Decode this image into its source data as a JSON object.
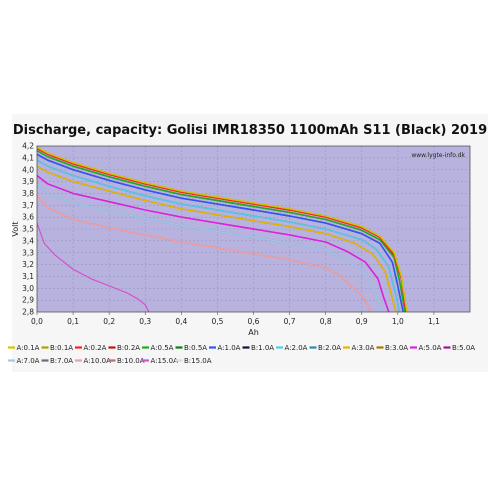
{
  "chart_data": {
    "type": "line",
    "title": "Discharge, capacity: Golisi IMR18350 1100mAh S11 (Black) 2019",
    "watermark": "www.lygte-info.dk",
    "xlabel": "Ah",
    "ylabel": "Volt",
    "xlim": [
      0,
      1.2
    ],
    "ylim": [
      2.8,
      4.2
    ],
    "x_ticks": [
      "0,0",
      "0,1",
      "0,2",
      "0,3",
      "0,4",
      "0,5",
      "0,6",
      "0,7",
      "0,8",
      "0,9",
      "1,0",
      "1,1"
    ],
    "y_ticks": [
      "2,8",
      "2,9",
      "3,0",
      "3,1",
      "3,2",
      "3,3",
      "3,4",
      "3,5",
      "3,6",
      "3,7",
      "3,8",
      "3,9",
      "4,0",
      "4,1",
      "4,2"
    ],
    "grid": true,
    "legend_position": "bottom",
    "background_color": "#b7b3de",
    "series": [
      {
        "name": "A:0.1A",
        "color": "#d2c400",
        "x": [
          0,
          0.03,
          0.1,
          0.2,
          0.3,
          0.4,
          0.5,
          0.6,
          0.7,
          0.8,
          0.9,
          0.95,
          0.99,
          1.01,
          1.025
        ],
        "y": [
          4.19,
          4.14,
          4.06,
          3.97,
          3.89,
          3.82,
          3.77,
          3.72,
          3.67,
          3.61,
          3.52,
          3.44,
          3.3,
          3.1,
          2.8
        ]
      },
      {
        "name": "B:0.1A",
        "color": "#b79a00",
        "x": [
          0,
          0.03,
          0.1,
          0.2,
          0.3,
          0.4,
          0.5,
          0.6,
          0.7,
          0.8,
          0.9,
          0.95,
          0.99,
          1.01,
          1.025
        ],
        "y": [
          4.19,
          4.14,
          4.06,
          3.97,
          3.89,
          3.82,
          3.77,
          3.72,
          3.67,
          3.61,
          3.52,
          3.44,
          3.3,
          3.1,
          2.8
        ]
      },
      {
        "name": "A:0.2A",
        "color": "#ff2020",
        "x": [
          0,
          0.03,
          0.1,
          0.2,
          0.3,
          0.4,
          0.5,
          0.6,
          0.7,
          0.8,
          0.9,
          0.95,
          0.99,
          1.01,
          1.023
        ],
        "y": [
          4.18,
          4.13,
          4.05,
          3.96,
          3.88,
          3.81,
          3.76,
          3.71,
          3.66,
          3.6,
          3.51,
          3.43,
          3.28,
          3.08,
          2.8
        ]
      },
      {
        "name": "B:0.2A",
        "color": "#c01010",
        "x": [
          0,
          0.03,
          0.1,
          0.2,
          0.3,
          0.4,
          0.5,
          0.6,
          0.7,
          0.8,
          0.9,
          0.95,
          0.99,
          1.01,
          1.023
        ],
        "y": [
          4.18,
          4.13,
          4.05,
          3.96,
          3.88,
          3.81,
          3.76,
          3.71,
          3.66,
          3.6,
          3.51,
          3.43,
          3.28,
          3.08,
          2.8
        ]
      },
      {
        "name": "A:0.5A",
        "color": "#22aa22",
        "x": [
          0,
          0.03,
          0.1,
          0.2,
          0.3,
          0.4,
          0.5,
          0.6,
          0.7,
          0.8,
          0.9,
          0.95,
          0.99,
          1.005,
          1.02
        ],
        "y": [
          4.16,
          4.11,
          4.03,
          3.94,
          3.86,
          3.79,
          3.74,
          3.69,
          3.64,
          3.58,
          3.49,
          3.41,
          3.26,
          3.06,
          2.8
        ]
      },
      {
        "name": "B:0.5A",
        "color": "#0f7a0f",
        "x": [
          0,
          0.03,
          0.1,
          0.2,
          0.3,
          0.4,
          0.5,
          0.6,
          0.7,
          0.8,
          0.9,
          0.95,
          0.99,
          1.005,
          1.02
        ],
        "y": [
          4.16,
          4.11,
          4.03,
          3.94,
          3.86,
          3.79,
          3.74,
          3.69,
          3.64,
          3.58,
          3.49,
          3.41,
          3.26,
          3.06,
          2.8
        ]
      },
      {
        "name": "A:1.0A",
        "color": "#3355ff",
        "x": [
          0,
          0.03,
          0.1,
          0.2,
          0.3,
          0.4,
          0.5,
          0.6,
          0.7,
          0.8,
          0.9,
          0.95,
          0.985,
          1.0,
          1.015
        ],
        "y": [
          4.13,
          4.08,
          4.0,
          3.91,
          3.83,
          3.76,
          3.71,
          3.66,
          3.61,
          3.55,
          3.46,
          3.38,
          3.22,
          3.02,
          2.8
        ]
      },
      {
        "name": "B:1.0A",
        "color": "#101040",
        "x": [
          0,
          0.03,
          0.1,
          0.2,
          0.3,
          0.4,
          0.5,
          0.6,
          0.7,
          0.8,
          0.9,
          0.95,
          0.985,
          1.0,
          1.015
        ],
        "y": [
          4.13,
          4.08,
          4.0,
          3.91,
          3.83,
          3.76,
          3.71,
          3.66,
          3.61,
          3.55,
          3.46,
          3.38,
          3.22,
          3.02,
          2.8
        ]
      },
      {
        "name": "A:2.0A",
        "color": "#55c8e8",
        "x": [
          0,
          0.03,
          0.1,
          0.2,
          0.3,
          0.4,
          0.5,
          0.6,
          0.7,
          0.8,
          0.9,
          0.94,
          0.975,
          0.99,
          1.005
        ],
        "y": [
          4.08,
          4.03,
          3.95,
          3.86,
          3.78,
          3.71,
          3.66,
          3.61,
          3.56,
          3.5,
          3.41,
          3.33,
          3.18,
          3.0,
          2.8
        ]
      },
      {
        "name": "B:2.0A",
        "color": "#2a8aa8",
        "x": [
          0,
          0.03,
          0.1,
          0.2,
          0.3,
          0.4,
          0.5,
          0.6,
          0.7,
          0.8,
          0.9,
          0.94,
          0.975,
          0.99,
          1.005
        ],
        "y": [
          4.08,
          4.03,
          3.95,
          3.86,
          3.78,
          3.71,
          3.66,
          3.61,
          3.56,
          3.5,
          3.41,
          3.33,
          3.18,
          3.0,
          2.8
        ]
      },
      {
        "name": "A:3.0A",
        "color": "#e0b800",
        "x": [
          0,
          0.03,
          0.1,
          0.2,
          0.3,
          0.4,
          0.5,
          0.6,
          0.7,
          0.8,
          0.88,
          0.93,
          0.965,
          0.98,
          0.995
        ],
        "y": [
          4.03,
          3.98,
          3.9,
          3.82,
          3.74,
          3.67,
          3.62,
          3.57,
          3.52,
          3.46,
          3.38,
          3.29,
          3.14,
          2.97,
          2.8
        ]
      },
      {
        "name": "B:3.0A",
        "color": "#a07a00",
        "x": [
          0,
          0.03,
          0.1,
          0.2,
          0.3,
          0.4,
          0.5,
          0.6,
          0.7,
          0.8,
          0.88,
          0.93,
          0.965,
          0.98,
          0.995
        ],
        "y": [
          4.03,
          3.98,
          3.9,
          3.82,
          3.74,
          3.67,
          3.62,
          3.57,
          3.52,
          3.46,
          3.38,
          3.29,
          3.14,
          2.97,
          2.8
        ]
      },
      {
        "name": "A:5.0A",
        "color": "#e020e0",
        "x": [
          0,
          0.03,
          0.1,
          0.2,
          0.3,
          0.4,
          0.5,
          0.6,
          0.7,
          0.8,
          0.86,
          0.91,
          0.945,
          0.96,
          0.975
        ],
        "y": [
          3.95,
          3.88,
          3.8,
          3.73,
          3.66,
          3.6,
          3.55,
          3.5,
          3.45,
          3.39,
          3.31,
          3.22,
          3.08,
          2.93,
          2.8
        ]
      },
      {
        "name": "B:5.0A",
        "color": "#a010a0",
        "x": [
          0,
          0.03,
          0.1,
          0.2,
          0.3,
          0.4,
          0.5,
          0.6,
          0.7,
          0.8,
          0.86,
          0.91,
          0.945,
          0.96,
          0.975
        ],
        "y": [
          3.95,
          3.88,
          3.8,
          3.73,
          3.66,
          3.6,
          3.55,
          3.5,
          3.45,
          3.39,
          3.31,
          3.22,
          3.08,
          2.93,
          2.8
        ]
      },
      {
        "name": "A:7.0A",
        "color": "#9ec8ee",
        "x": [
          0,
          0.03,
          0.1,
          0.2,
          0.3,
          0.4,
          0.5,
          0.6,
          0.7,
          0.8,
          0.85,
          0.9,
          0.93,
          0.945,
          0.955
        ],
        "y": [
          3.88,
          3.8,
          3.72,
          3.65,
          3.59,
          3.53,
          3.48,
          3.43,
          3.38,
          3.32,
          3.25,
          3.15,
          3.02,
          2.9,
          2.8
        ]
      },
      {
        "name": "B:7.0A",
        "color": "#607080",
        "x": [
          0,
          0.03,
          0.1,
          0.2,
          0.3,
          0.4,
          0.5,
          0.6,
          0.7,
          0.8,
          0.85,
          0.9,
          0.93,
          0.945,
          0.955
        ],
        "y": [
          3.88,
          3.8,
          3.72,
          3.65,
          3.59,
          3.53,
          3.48,
          3.43,
          3.38,
          3.32,
          3.25,
          3.15,
          3.02,
          2.9,
          2.8
        ]
      },
      {
        "name": "A:10.0A",
        "color": "#f0a0a0",
        "x": [
          0,
          0.03,
          0.1,
          0.2,
          0.3,
          0.4,
          0.5,
          0.6,
          0.7,
          0.8,
          0.84,
          0.87,
          0.9,
          0.915,
          0.925
        ],
        "y": [
          3.78,
          3.68,
          3.58,
          3.51,
          3.45,
          3.39,
          3.34,
          3.29,
          3.24,
          3.17,
          3.11,
          3.02,
          2.94,
          2.86,
          2.8
        ]
      },
      {
        "name": "B:10.0A",
        "color": "#c06a6a",
        "x": [
          0,
          0.03,
          0.1,
          0.2,
          0.3,
          0.4,
          0.5,
          0.6,
          0.7,
          0.8,
          0.84,
          0.87,
          0.9,
          0.915,
          0.925
        ],
        "y": [
          3.78,
          3.68,
          3.58,
          3.51,
          3.45,
          3.39,
          3.34,
          3.29,
          3.24,
          3.17,
          3.11,
          3.02,
          2.94,
          2.86,
          2.8
        ]
      },
      {
        "name": "A:15.0A",
        "color": "#cc55cc",
        "x": [
          0,
          0.02,
          0.05,
          0.1,
          0.15,
          0.2,
          0.25,
          0.28,
          0.3,
          0.31
        ],
        "y": [
          3.55,
          3.38,
          3.28,
          3.16,
          3.08,
          3.02,
          2.96,
          2.91,
          2.86,
          2.8
        ]
      },
      {
        "name": "B:15.0A",
        "color": "#ffffff",
        "x": [
          0,
          0.02,
          0.05,
          0.1,
          0.15,
          0.2,
          0.25,
          0.28,
          0.3,
          0.31
        ],
        "y": [
          3.55,
          3.38,
          3.28,
          3.16,
          3.08,
          3.02,
          2.96,
          2.91,
          2.86,
          2.8
        ]
      }
    ]
  }
}
